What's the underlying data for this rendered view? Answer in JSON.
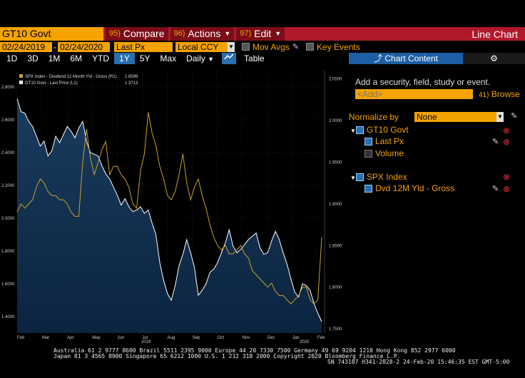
{
  "toolbar": {
    "ticker": "GT10 Govt",
    "compare_num": "95)",
    "compare_label": "Compare",
    "actions_num": "96)",
    "actions_label": "Actions",
    "edit_num": "97)",
    "edit_label": "Edit",
    "title": "Line Chart"
  },
  "range": {
    "start": "02/24/2019",
    "end": "02/24/2020",
    "field": "Last Px",
    "currency": "Local CCY",
    "mov_avgs": "Mov Avgs",
    "key_events": "Key Events"
  },
  "periods": [
    "1D",
    "3D",
    "1M",
    "6M",
    "YTD",
    "1Y",
    "5Y",
    "Max"
  ],
  "selected_period": "1Y",
  "frequency": "Daily",
  "table_label": "Table",
  "panel": {
    "tab_label": "Chart Content",
    "add_text": "Add a security, field, study or event.",
    "add_placeholder": "<Add>",
    "browse_num": "41)",
    "browse_label": "Browse",
    "normalize_label": "Normalize by",
    "normalize_value": "None",
    "sec1": "GT10 Govt",
    "sec1_f1": "Last Px",
    "sec1_f2": "Volume",
    "sec2": "SPX Index",
    "sec2_f1": "Dvd 12M Yld - Gross"
  },
  "chart_data": {
    "type": "line",
    "legend": [
      {
        "name": "SPX Index - Dividend 12 Month Yld - Gross (R1)",
        "last": "1.8599",
        "color": "#c9a227"
      },
      {
        "name": "GT10 Govt - Last Price (L1)",
        "last": "1.3713",
        "color": "#ffffff"
      }
    ],
    "left_axis": {
      "ylim": [
        1.3,
        2.9
      ],
      "ticks": [
        "2.8000",
        "2.6000",
        "2.4000",
        "2.2000",
        "2.0000",
        "1.8000",
        "1.6000",
        "1.4000"
      ],
      "values": [
        2.8,
        2.6,
        2.4,
        2.2,
        2.0,
        1.8,
        1.6,
        1.4
      ]
    },
    "right_axis": {
      "ylim": [
        1.745,
        2.06
      ],
      "ticks": [
        "2.0500",
        "2.0000",
        "1.9500",
        "1.9000",
        "1.8500",
        "1.8000",
        "1.7500"
      ],
      "values": [
        2.05,
        2.0,
        1.95,
        1.9,
        1.85,
        1.8,
        1.75
      ]
    },
    "months": [
      "Feb",
      "Mar",
      "Apr",
      "May",
      "Jun",
      "Jul",
      "Aug",
      "Sep",
      "Oct",
      "Nov",
      "Dec",
      "Jan",
      "Feb"
    ],
    "years": [
      "2019",
      "2020"
    ],
    "gt10_series": [
      2.73,
      2.65,
      2.64,
      2.59,
      2.56,
      2.5,
      2.44,
      2.47,
      2.38,
      2.41,
      2.5,
      2.46,
      2.51,
      2.56,
      2.53,
      2.49,
      2.55,
      2.59,
      2.47,
      2.4,
      2.39,
      2.38,
      2.32,
      2.27,
      2.24,
      2.19,
      2.14,
      2.08,
      2.12,
      2.07,
      2.04,
      2.05,
      2.07,
      2.03,
      2.05,
      1.97,
      1.9,
      1.73,
      1.62,
      1.54,
      1.5,
      1.59,
      1.71,
      1.78,
      1.87,
      1.79,
      1.7,
      1.53,
      1.56,
      1.6,
      1.67,
      1.69,
      1.73,
      1.79,
      1.85,
      1.93,
      1.83,
      1.79,
      1.81,
      1.84,
      1.87,
      1.89,
      1.91,
      1.82,
      1.78,
      1.79,
      1.86,
      1.92,
      1.87,
      1.79,
      1.72,
      1.63,
      1.55,
      1.52,
      1.6,
      1.59,
      1.56,
      1.48,
      1.42,
      1.37
    ],
    "spx_series": [
      1.89,
      1.9,
      1.895,
      1.9,
      1.905,
      1.92,
      1.93,
      1.925,
      1.915,
      1.91,
      1.91,
      1.905,
      1.905,
      1.9,
      1.89,
      1.885,
      1.885,
      1.95,
      1.99,
      1.955,
      1.935,
      1.95,
      1.965,
      1.975,
      1.935,
      1.945,
      1.945,
      1.935,
      1.93,
      1.92,
      1.9,
      1.895,
      1.94,
      1.96,
      2.01,
      1.985,
      1.97,
      1.945,
      1.93,
      1.91,
      1.905,
      1.915,
      1.935,
      1.96,
      1.925,
      1.905,
      1.92,
      1.93,
      1.91,
      1.895,
      1.875,
      1.86,
      1.85,
      1.845,
      1.85,
      1.84,
      1.84,
      1.845,
      1.85,
      1.84,
      1.835,
      1.82,
      1.815,
      1.81,
      1.805,
      1.8,
      1.805,
      1.795,
      1.79,
      1.79,
      1.785,
      1.78,
      1.785,
      1.79,
      1.8,
      1.8,
      1.785,
      1.78,
      1.785,
      1.8599
    ]
  },
  "footer": {
    "line1": "Australia 61 2 9777 8600 Brazil 5511 2395 9000 Europe 44 20 7330 7500 Germany 49 69 9204 1210 Hong Kong 852 2977 6000",
    "line2": "Japan 81 3 4565 8900        Singapore 65 6212 1000        U.S. 1 212 318 2000          Copyright 2020 Bloomberg Finance L.P.",
    "line3": "SN 743187 H341-2828-2 24-Feb-20 15:46:35 EST  GMT-5:00"
  },
  "colors": {
    "accent": "#f4a300",
    "bar": "#b0182a",
    "selected": "#2a6fb0"
  }
}
